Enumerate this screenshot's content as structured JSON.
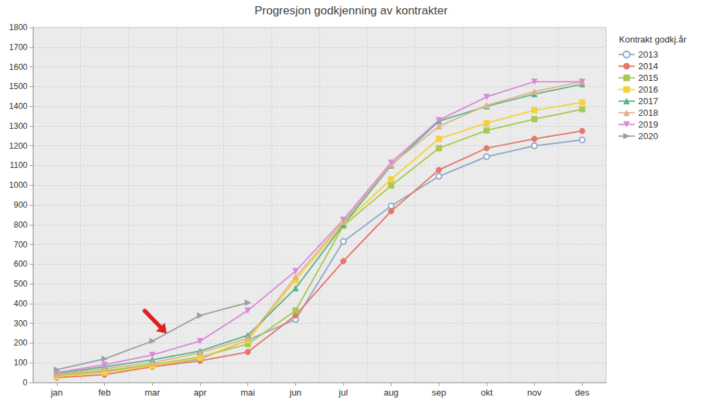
{
  "chart_data": {
    "type": "line",
    "title": "Progresjon godkjenning av kontrakter",
    "legend_title": "Kontrakt godkj.år",
    "legend": "right",
    "grid": true,
    "categories": [
      "jan",
      "feb",
      "mar",
      "apr",
      "mai",
      "jun",
      "jul",
      "aug",
      "sep",
      "okt",
      "nov",
      "des"
    ],
    "ylim": [
      0,
      1800
    ],
    "yticks": [
      0,
      100,
      200,
      300,
      400,
      500,
      600,
      700,
      800,
      900,
      1000,
      1100,
      1200,
      1300,
      1400,
      1500,
      1600,
      1700,
      1800
    ],
    "series": [
      {
        "name": "2013",
        "color": "#8fa8c8",
        "marker": "open-circle",
        "values": [
          40,
          55,
          85,
          120,
          215,
          320,
          715,
          895,
          1045,
          1145,
          1200,
          1230
        ]
      },
      {
        "name": "2014",
        "color": "#e8766a",
        "marker": "circle",
        "values": [
          25,
          40,
          80,
          110,
          155,
          340,
          615,
          868,
          1078,
          1188,
          1235,
          1275
        ]
      },
      {
        "name": "2015",
        "color": "#a9c94e",
        "marker": "square",
        "values": [
          35,
          60,
          90,
          130,
          195,
          365,
          795,
          998,
          1188,
          1278,
          1335,
          1385
        ]
      },
      {
        "name": "2016",
        "color": "#f5d13c",
        "marker": "square",
        "values": [
          30,
          50,
          85,
          125,
          215,
          520,
          805,
          1030,
          1235,
          1315,
          1380,
          1420
        ]
      },
      {
        "name": "2017",
        "color": "#5cb38a",
        "marker": "triangle",
        "values": [
          45,
          80,
          115,
          160,
          240,
          478,
          800,
          1100,
          1325,
          1400,
          1462,
          1512
        ]
      },
      {
        "name": "2018",
        "color": "#e0b48a",
        "marker": "triangle",
        "values": [
          40,
          70,
          100,
          150,
          225,
          535,
          815,
          1105,
          1298,
          1405,
          1475,
          1525
        ]
      },
      {
        "name": "2019",
        "color": "#d98ad8",
        "marker": "triangle-down",
        "values": [
          50,
          90,
          140,
          210,
          365,
          565,
          825,
          1115,
          1330,
          1448,
          1525,
          1525
        ]
      },
      {
        "name": "2020",
        "color": "#a0a0a0",
        "marker": "triangle-right",
        "values": [
          65,
          120,
          210,
          340,
          405,
          null,
          null,
          null,
          null,
          null,
          null,
          null
        ]
      }
    ]
  }
}
